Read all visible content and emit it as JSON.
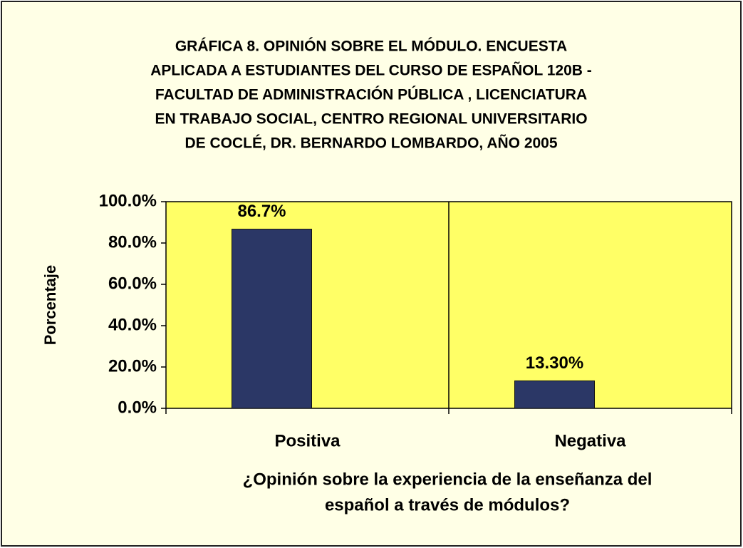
{
  "chart_data": {
    "type": "bar",
    "title": [
      "GRÁFICA 8.  OPINIÓN SOBRE EL MÓDULO.   ENCUESTA",
      "APLICADA A ESTUDIANTES DEL CURSO DE ESPAÑOL 120B -",
      "FACULTAD DE ADMINISTRACIÓN PÚBLICA , LICENCIATURA",
      "EN  TRABAJO SOCIAL, CENTRO REGIONAL UNIVERSITARIO",
      "DE COCLÉ, DR. BERNARDO LOMBARDO, AÑO  2005"
    ],
    "x_label": [
      "¿Opinión sobre la experiencia de la enseñanza del",
      "español a través de módulos?"
    ],
    "y_label": "Porcentaje",
    "categories": [
      "Positiva",
      "Negativa"
    ],
    "values": [
      86.7,
      13.3
    ],
    "value_labels": [
      "86.7%",
      "13.30%"
    ],
    "color": "#2b3766",
    "ylim": [
      0,
      100
    ],
    "yticks": [
      {
        "value": 0,
        "label": "0.0%"
      },
      {
        "value": 20,
        "label": "20.0%"
      },
      {
        "value": 40,
        "label": "40.0%"
      },
      {
        "value": 60,
        "label": "60.0%"
      },
      {
        "value": 80,
        "label": "80.0%"
      },
      {
        "value": 100,
        "label": "100.0%"
      }
    ]
  }
}
